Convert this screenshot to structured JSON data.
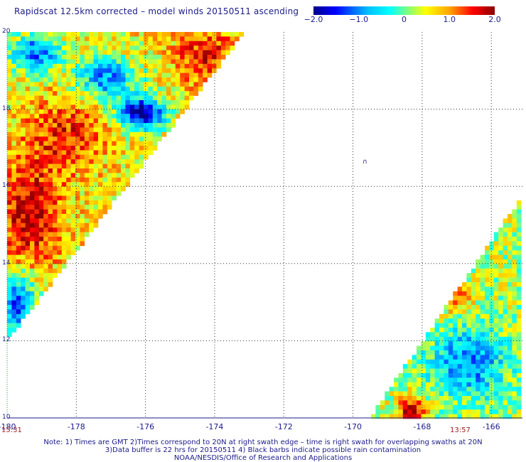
{
  "title": "Rapidscat 12.5km corrected – model winds 20150511 ascending",
  "colorbar": {
    "ticks": [
      "−2.0",
      "−1.0",
      "0",
      "1.0",
      "2.0"
    ],
    "range": [
      -2.0,
      2.0
    ],
    "colors": [
      "#00008b",
      "#0000ff",
      "#00bfff",
      "#00ffff",
      "#7fff7f",
      "#ffff00",
      "#ffa500",
      "#ff0000",
      "#8b0000"
    ]
  },
  "map": {
    "lat_labels": [
      "20",
      "18",
      "16",
      "14",
      "12",
      "10"
    ],
    "lon_labels": [
      "-180",
      "-178",
      "-176",
      "-174",
      "-172",
      "-170",
      "-168",
      "-166"
    ],
    "lat_range": [
      10,
      20
    ],
    "lon_range": [
      -180,
      -165.1
    ],
    "grid_style": "dotted",
    "island_marker": "∩"
  },
  "times": {
    "left": "15:31",
    "right": "13:57"
  },
  "notes": [
    "Note: 1) Times are GMT 2)Times correspond to 20N at right swath edge – time is right swath for overlapping swaths at 20N",
    "3)Data buffer is 22 hrs for 20150511 4) Black barbs indicate possible rain contamination",
    "NOAA/NESDIS/Office of Research and Applications"
  ]
}
